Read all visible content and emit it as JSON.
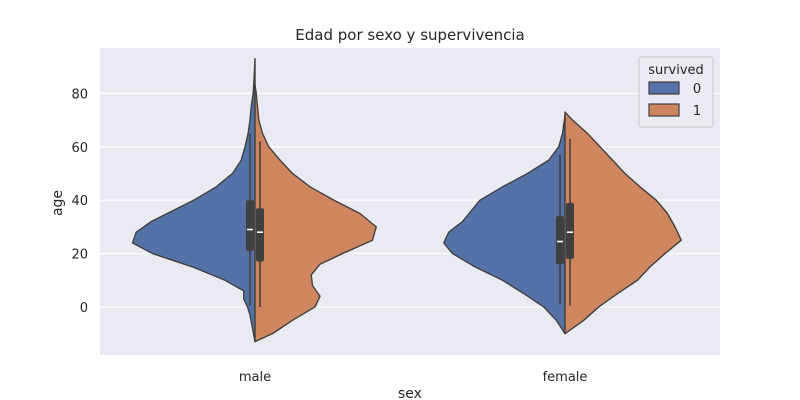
{
  "chart_data": {
    "type": "violin",
    "title": "Edad por sexo y supervivencia",
    "xlabel": "sex",
    "ylabel": "age",
    "categories": [
      "male",
      "female"
    ],
    "ylim": [
      -18,
      97
    ],
    "yticks": [
      0,
      20,
      40,
      60,
      80
    ],
    "legend": {
      "title": "survived",
      "placement": "top-right",
      "entries": [
        {
          "label": "0",
          "color": "#5572A8"
        },
        {
          "label": "1",
          "color": "#CF865E"
        }
      ]
    },
    "grid": true,
    "background": "#EAEAF2",
    "hues": [
      {
        "name": "0",
        "color": "#5572A8",
        "groups": [
          {
            "category": "male",
            "profile": [
              [
                -13,
                0.0
              ],
              [
                -8,
                0.02
              ],
              [
                -3,
                0.04
              ],
              [
                0,
                0.06
              ],
              [
                3,
                0.09
              ],
              [
                6,
                0.09
              ],
              [
                10,
                0.24
              ],
              [
                15,
                0.5
              ],
              [
                20,
                0.82
              ],
              [
                24,
                0.98
              ],
              [
                28,
                0.95
              ],
              [
                32,
                0.83
              ],
              [
                36,
                0.66
              ],
              [
                40,
                0.49
              ],
              [
                45,
                0.31
              ],
              [
                50,
                0.18
              ],
              [
                55,
                0.11
              ],
              [
                60,
                0.08
              ],
              [
                65,
                0.055
              ],
              [
                70,
                0.04
              ],
              [
                75,
                0.03
              ],
              [
                80,
                0.015
              ],
              [
                85,
                0.008
              ],
              [
                93,
                0.0
              ]
            ],
            "box": {
              "q1": 21,
              "q3": 40,
              "median": 29,
              "whisker_low": 0.5,
              "whisker_high": 65
            }
          },
          {
            "category": "female",
            "profile": [
              [
                -10,
                0.0
              ],
              [
                -5,
                0.07
              ],
              [
                0,
                0.17
              ],
              [
                5,
                0.33
              ],
              [
                10,
                0.5
              ],
              [
                15,
                0.72
              ],
              [
                20,
                0.9
              ],
              [
                24,
                0.97
              ],
              [
                28,
                0.93
              ],
              [
                32,
                0.82
              ],
              [
                36,
                0.75
              ],
              [
                40,
                0.68
              ],
              [
                45,
                0.5
              ],
              [
                50,
                0.3
              ],
              [
                55,
                0.13
              ],
              [
                60,
                0.05
              ],
              [
                65,
                0.02
              ],
              [
                70,
                0.005
              ],
              [
                72,
                0.0
              ]
            ],
            "box": {
              "q1": 16,
              "q3": 34,
              "median": 24.5,
              "whisker_low": 1,
              "whisker_high": 57
            }
          }
        ]
      },
      {
        "name": "1",
        "color": "#CF865E",
        "groups": [
          {
            "category": "male",
            "profile": [
              [
                -13,
                0.0
              ],
              [
                -10,
                0.14
              ],
              [
                -5,
                0.3
              ],
              [
                0,
                0.48
              ],
              [
                4,
                0.52
              ],
              [
                8,
                0.46
              ],
              [
                12,
                0.45
              ],
              [
                16,
                0.52
              ],
              [
                20,
                0.7
              ],
              [
                25,
                0.94
              ],
              [
                30,
                0.97
              ],
              [
                35,
                0.84
              ],
              [
                40,
                0.63
              ],
              [
                45,
                0.44
              ],
              [
                50,
                0.3
              ],
              [
                55,
                0.2
              ],
              [
                60,
                0.11
              ],
              [
                65,
                0.06
              ],
              [
                70,
                0.03
              ],
              [
                75,
                0.02
              ],
              [
                80,
                0.01
              ],
              [
                83,
                0.0
              ]
            ],
            "box": {
              "q1": 17,
              "q3": 37,
              "median": 28,
              "whisker_low": 0,
              "whisker_high": 62
            }
          },
          {
            "category": "female",
            "profile": [
              [
                -10,
                0.0
              ],
              [
                -5,
                0.15
              ],
              [
                0,
                0.27
              ],
              [
                5,
                0.42
              ],
              [
                10,
                0.58
              ],
              [
                15,
                0.68
              ],
              [
                20,
                0.8
              ],
              [
                25,
                0.93
              ],
              [
                30,
                0.88
              ],
              [
                35,
                0.82
              ],
              [
                40,
                0.73
              ],
              [
                45,
                0.6
              ],
              [
                50,
                0.48
              ],
              [
                55,
                0.38
              ],
              [
                60,
                0.28
              ],
              [
                65,
                0.18
              ],
              [
                70,
                0.06
              ],
              [
                73,
                0.0
              ]
            ],
            "box": {
              "q1": 18,
              "q3": 39,
              "median": 28,
              "whisker_low": 0.5,
              "whisker_high": 63
            }
          }
        ]
      }
    ]
  }
}
